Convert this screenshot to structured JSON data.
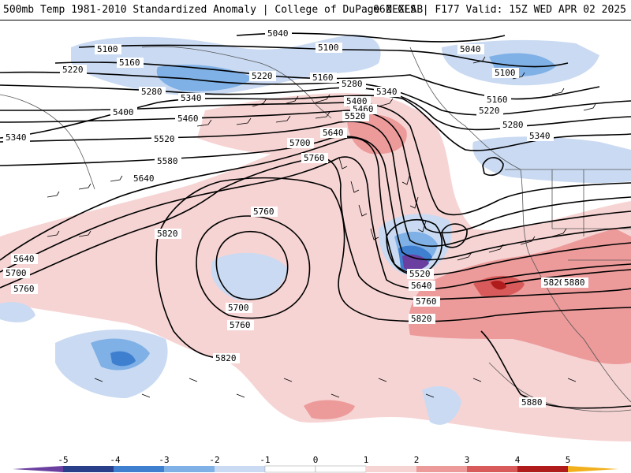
{
  "header": {
    "title_left": "500mb Temp 1981-2010 Standardized Anomaly | College of DuPage NEXLAB",
    "title_right": "06Z GFS | F177 Valid: 15Z WED APR 02 2025"
  },
  "colors": {
    "strong_negative": "#6a3fa0",
    "negative_3": "#3f7fd0",
    "negative_2": "#7fb0e6",
    "negative_1": "#c9daf2",
    "neutral": "#ffffff",
    "positive_1": "#f7d4d4",
    "positive_2": "#ec9a9a",
    "positive_3": "#d85a5a",
    "positive_4": "#b01c1c",
    "positive_5": "#f2b01c"
  },
  "contours": {
    "c5040a": "5040",
    "c5040b": "5040",
    "c5100a": "5100",
    "c5100b": "5100",
    "c5100c": "5100",
    "c5160a": "5160",
    "c5160b": "5160",
    "c5160c": "5160",
    "c5220a": "5220",
    "c5220b": "5220",
    "c5220c": "5220",
    "c5280a": "5280",
    "c5280b": "5280",
    "c5280c": "5280",
    "c5340a": "5340",
    "c5340b": "5340",
    "c5340c": "5340",
    "c5340d": "5340",
    "c5400a": "5400",
    "c5400b": "5400",
    "c5460a": "5460",
    "c5460b": "5460",
    "c5520a": "5520",
    "c5520b": "5520",
    "c5520c": "5520",
    "c5580": "5580",
    "c5640a": "5640",
    "c5640b": "5640",
    "c5640c": "5640",
    "c5640d": "5640",
    "c5700a": "5700",
    "c5700b": "5700",
    "c5700c": "5700",
    "c5760a": "5760",
    "c5760b": "5760",
    "c5760c": "5760",
    "c5760d": "5760",
    "c5760e": "5760",
    "c5820a": "5820",
    "c5820b": "5820",
    "c5820c": "5820",
    "c5820d": "5820",
    "c5880a": "5880",
    "c5880b": "5880"
  },
  "colorbar": {
    "ticks": [
      "-5",
      "-4",
      "-3",
      "-2",
      "-1",
      "0",
      "1",
      "2",
      "3",
      "4",
      "5"
    ]
  }
}
